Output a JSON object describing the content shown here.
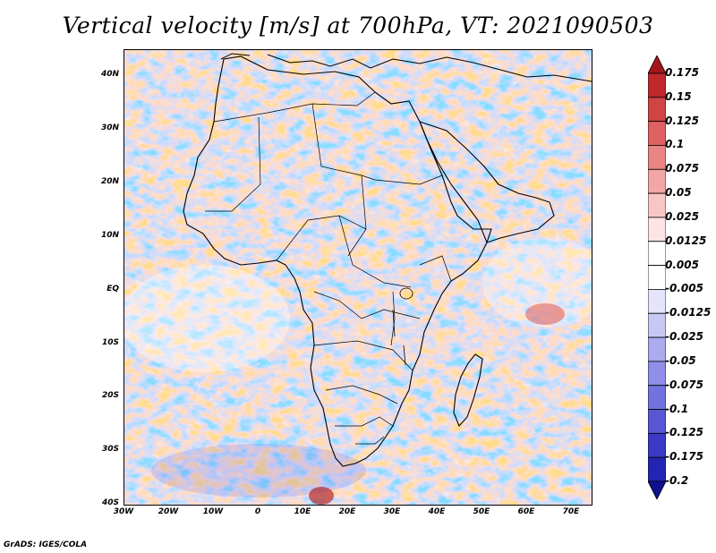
{
  "title": "Vertical velocity [m/s] at 700hPa, VT: 2021090503",
  "footer": "GrADS: IGES/COLA",
  "lat_labels": [
    "40N",
    "30N",
    "20N",
    "10N",
    "EQ",
    "10S",
    "20S",
    "30S",
    "40S"
  ],
  "lon_labels": [
    "30W",
    "20W",
    "10W",
    "0",
    "10E",
    "20E",
    "30E",
    "40E",
    "50E",
    "60E",
    "70E"
  ],
  "colorbar": {
    "levels": [
      "0.175",
      "0.15",
      "0.125",
      "0.1",
      "0.075",
      "0.05",
      "0.025",
      "0.0125",
      "0.005",
      "-0.005",
      "-0.0125",
      "-0.025",
      "-0.05",
      "-0.075",
      "-0.1",
      "-0.125",
      "-0.175",
      "-0.2"
    ],
    "colors": [
      "#a4161c",
      "#c0282c",
      "#d14444",
      "#df6262",
      "#ea8585",
      "#f2a6a6",
      "#f8c6c6",
      "#fce4e4",
      "#ffffff",
      "#ffffff",
      "#e4e4fa",
      "#c8c8f4",
      "#ababef",
      "#8f8fe8",
      "#7373df",
      "#5757d4",
      "#3a3ac6",
      "#2424b4",
      "#10108f"
    ]
  },
  "colors": {
    "positive": "#e26a6a",
    "negative": "#6a6ad8",
    "land_outline": "#000000"
  }
}
